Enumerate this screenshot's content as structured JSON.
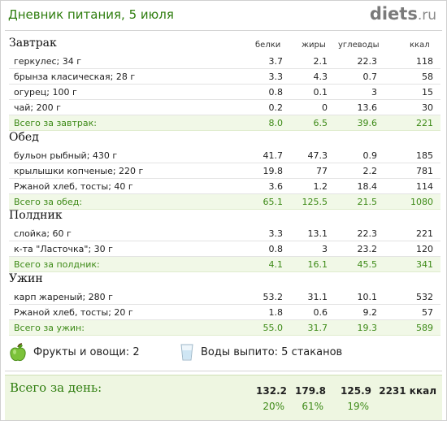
{
  "header": {
    "title": "Дневник питания, 5 июля",
    "logo_main": "diets",
    "logo_suffix": ".ru"
  },
  "columns": [
    "белки",
    "жиры",
    "углеводы",
    "ккал"
  ],
  "meals": [
    {
      "name": "Завтрак",
      "items": [
        [
          "геркулес; 34 г",
          "3.7",
          "2.1",
          "22.3",
          "118"
        ],
        [
          "брынза класическая; 28 г",
          "3.3",
          "4.3",
          "0.7",
          "58"
        ],
        [
          "огурец; 100 г",
          "0.8",
          "0.1",
          "3",
          "15"
        ],
        [
          "чай; 200 г",
          "0.2",
          "0",
          "13.6",
          "30"
        ]
      ],
      "total": [
        "Всего за завтрак:",
        "8.0",
        "6.5",
        "39.6",
        "221"
      ]
    },
    {
      "name": "Обед",
      "items": [
        [
          "бульон рыбный; 430 г",
          "41.7",
          "47.3",
          "0.9",
          "185"
        ],
        [
          "крылышки копченые; 220 г",
          "19.8",
          "77",
          "2.2",
          "781"
        ],
        [
          "Ржаной хлеб, тосты; 40 г",
          "3.6",
          "1.2",
          "18.4",
          "114"
        ]
      ],
      "total": [
        "Всего за обед:",
        "65.1",
        "125.5",
        "21.5",
        "1080"
      ]
    },
    {
      "name": "Полдник",
      "items": [
        [
          "слойка; 60 г",
          "3.3",
          "13.1",
          "22.3",
          "221"
        ],
        [
          "к-та \"Ласточка\"; 30 г",
          "0.8",
          "3",
          "23.2",
          "120"
        ]
      ],
      "total": [
        "Всего за полдник:",
        "4.1",
        "16.1",
        "45.5",
        "341"
      ]
    },
    {
      "name": "Ужин",
      "items": [
        [
          "карп жареный; 280 г",
          "53.2",
          "31.1",
          "10.1",
          "532"
        ],
        [
          "Ржаной хлеб, тосты; 20 г",
          "1.8",
          "0.6",
          "9.2",
          "57"
        ]
      ],
      "total": [
        "Всего за ужин:",
        "55.0",
        "31.7",
        "19.3",
        "589"
      ]
    }
  ],
  "extras": {
    "fruit_label": "Фрукты и овощи: 2",
    "water_label": "Воды выпито: 5 стаканов",
    "fruit_icon": "green-apple-icon",
    "water_icon": "water-glass-icon"
  },
  "day_total": {
    "label": "Всего за день:",
    "values": [
      "132.2",
      "179.8",
      "125.9",
      "2231 ккал"
    ],
    "percents": [
      "20%",
      "61%",
      "19%"
    ]
  },
  "colors": {
    "accent_green": "#2e7d0e",
    "total_green": "#3d8a17",
    "total_bg": "#f1f8e7"
  }
}
